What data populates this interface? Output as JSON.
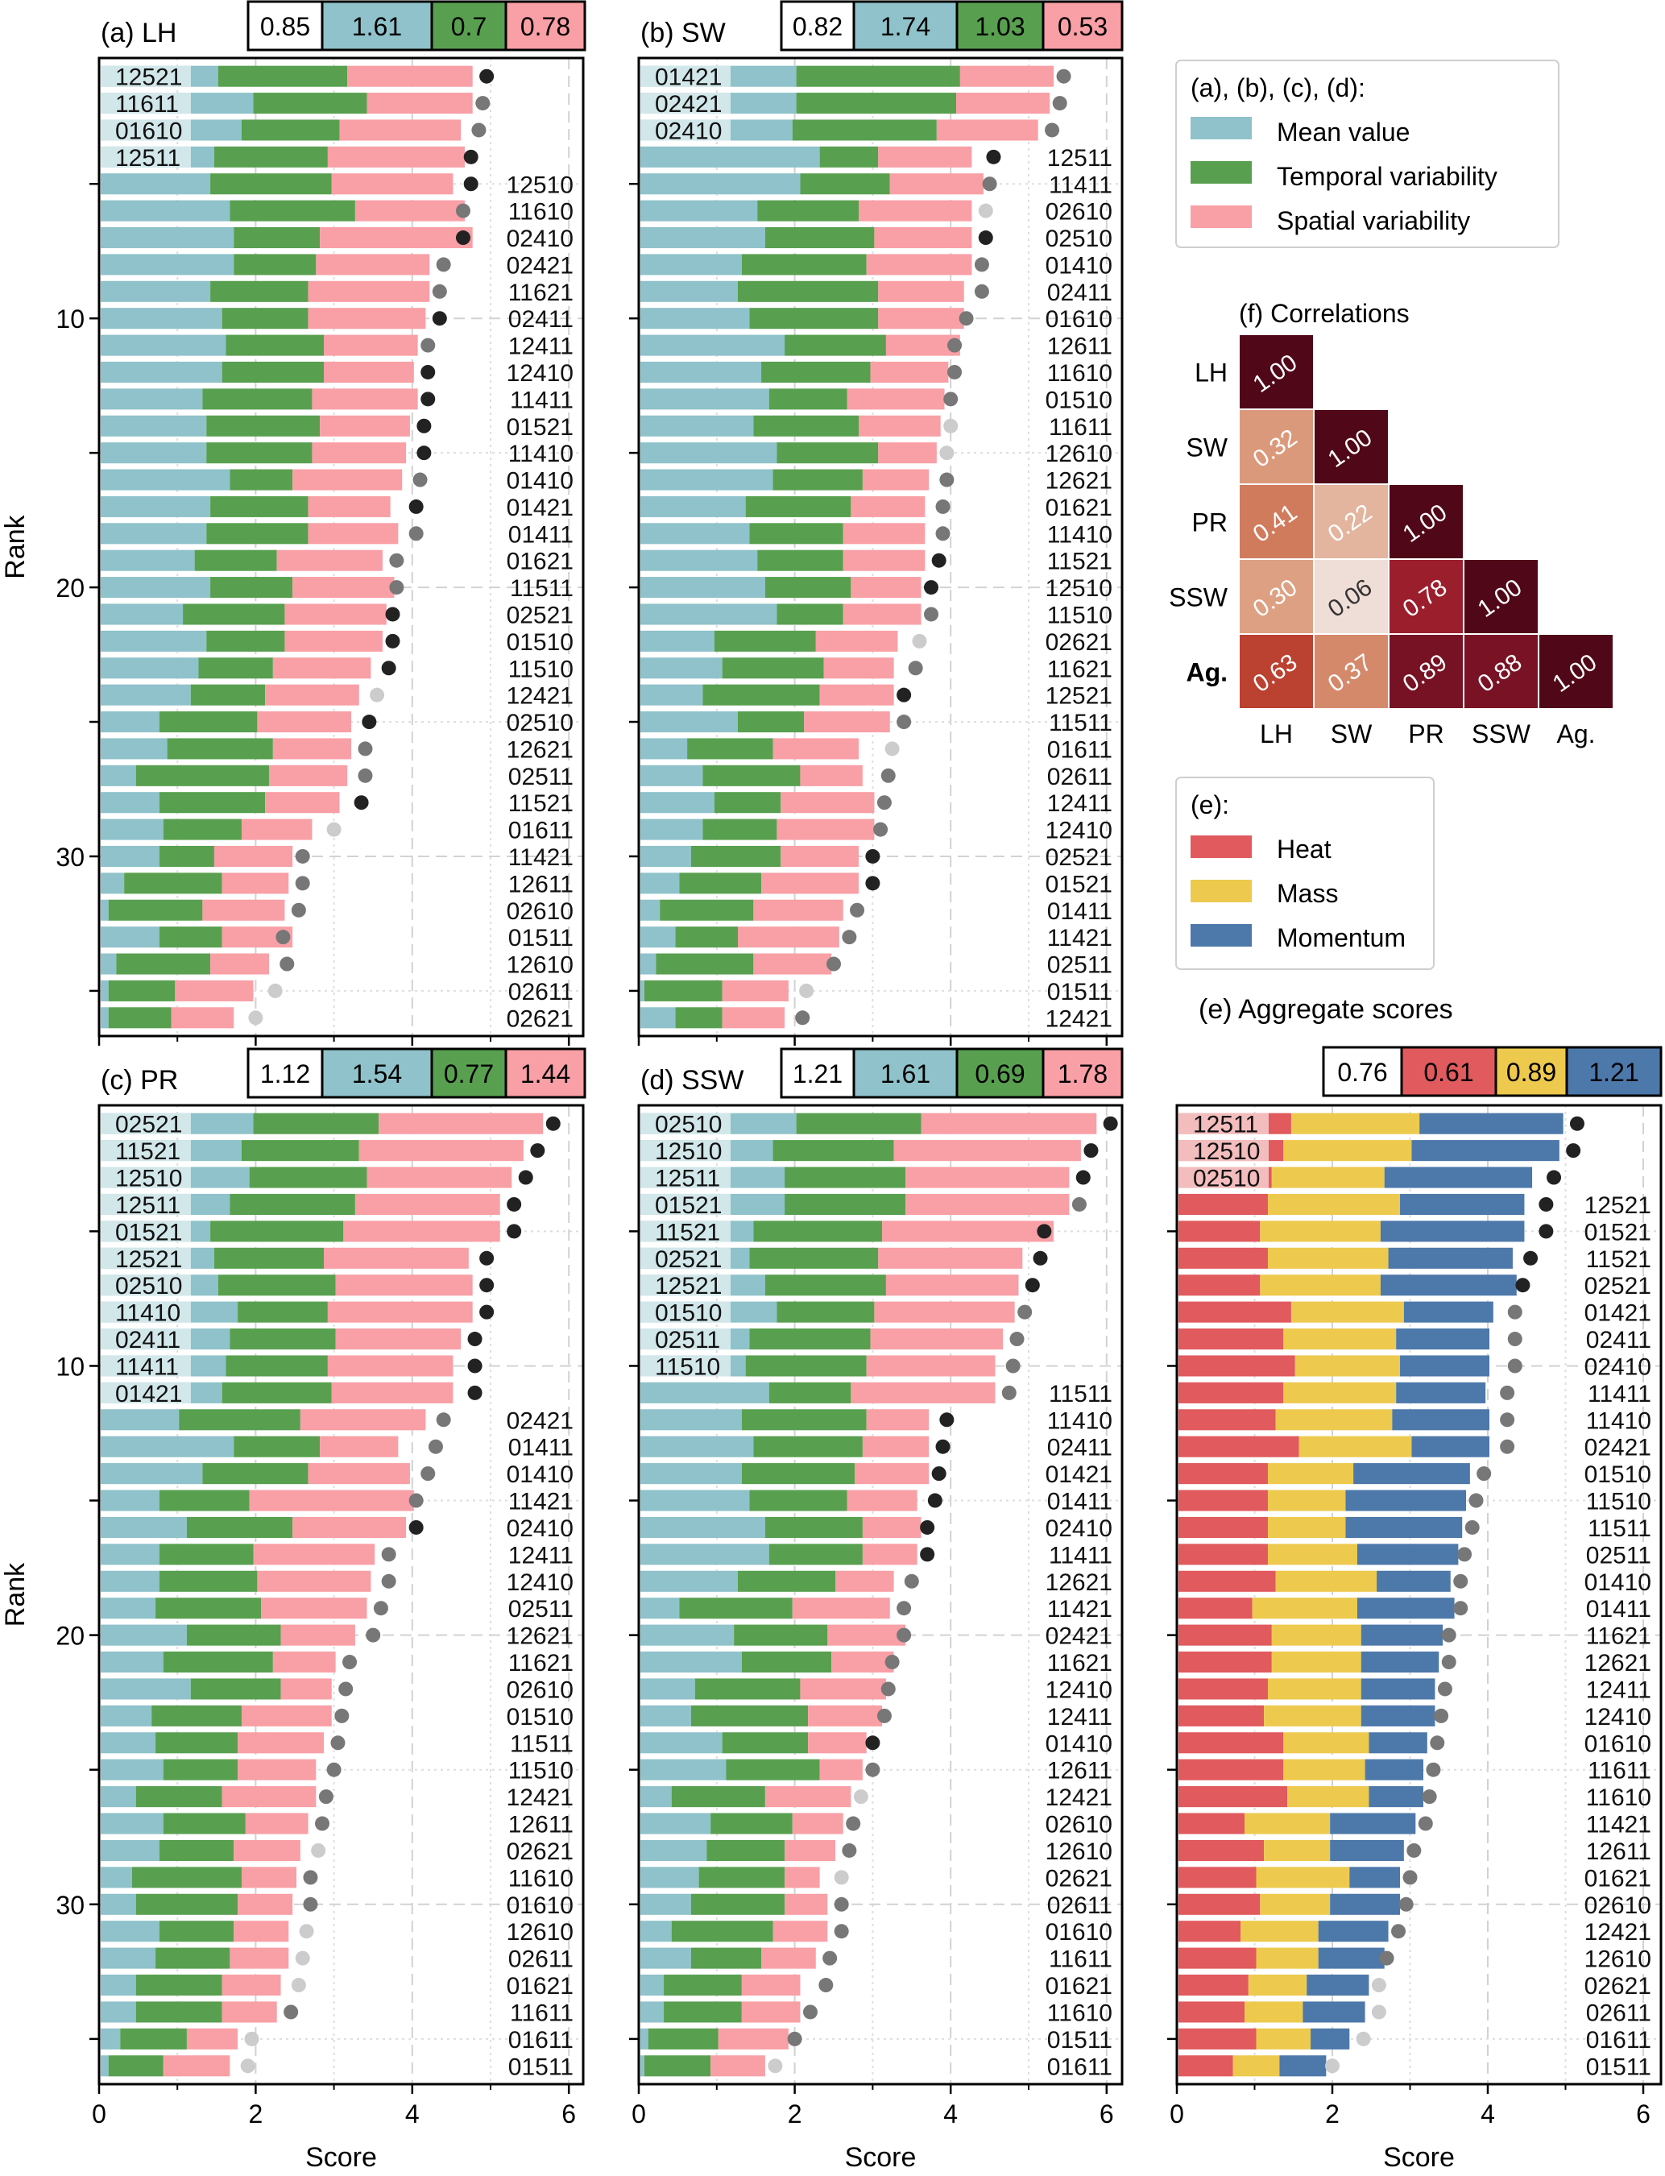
{
  "colors": {
    "mean": "#8fc2ca",
    "temporal": "#58a04f",
    "spatial": "#f99fa6",
    "heat": "#e05a5e",
    "mass": "#edc94e",
    "momentum": "#4d78aa",
    "dot_dark": "#222222",
    "dot_mid": "#777777",
    "dot_light": "#cccccc"
  },
  "common": {
    "ylabel": "Rank",
    "xlabel": "Score",
    "yticks": [
      "10",
      "20",
      "30"
    ],
    "xticks": [
      "0",
      "2",
      "4",
      "6"
    ]
  },
  "legend_main": {
    "title": "(a), (b), (c), (d):",
    "items": [
      "Mean value",
      "Temporal variability",
      "Spatial variability"
    ]
  },
  "legend_e": {
    "title": "(e):",
    "items": [
      "Heat",
      "Mass",
      "Momentum"
    ]
  },
  "corr": {
    "title": "(f) Correlations",
    "labels": [
      "LH",
      "SW",
      "PR",
      "SSW",
      "Ag."
    ],
    "values": [
      [
        "1.00"
      ],
      [
        "0.32",
        "1.00"
      ],
      [
        "0.41",
        "0.22",
        "1.00"
      ],
      [
        "0.30",
        "0.06",
        "0.78",
        "1.00"
      ],
      [
        "0.63",
        "0.37",
        "0.89",
        "0.88",
        "1.00"
      ]
    ]
  },
  "chart_data": [
    {
      "type": "bar",
      "panel": "LH",
      "title": "(a) LH",
      "scores": [
        "0.85",
        "1.61",
        "0.7",
        "0.78"
      ],
      "xlim": [
        0,
        6.3
      ],
      "labels": [
        "12521",
        "11611",
        "01610",
        "12511",
        "12510",
        "11610",
        "02410",
        "02421",
        "11621",
        "02411",
        "12411",
        "12410",
        "11411",
        "01521",
        "11410",
        "01410",
        "01421",
        "01411",
        "01621",
        "11511",
        "02521",
        "01510",
        "11510",
        "12421",
        "02510",
        "12621",
        "02511",
        "11521",
        "01611",
        "11421",
        "12611",
        "02610",
        "01511",
        "12610",
        "02611",
        "02621"
      ],
      "mean": [
        1.5,
        1.95,
        1.8,
        1.45,
        1.4,
        1.65,
        1.7,
        1.7,
        1.4,
        1.55,
        1.6,
        1.55,
        1.3,
        1.35,
        1.35,
        1.65,
        1.4,
        1.35,
        1.2,
        1.4,
        1.05,
        1.35,
        1.25,
        1.15,
        0.75,
        0.85,
        0.45,
        0.75,
        0.8,
        0.75,
        0.3,
        0.1,
        0.75,
        0.2,
        0.1,
        0.1
      ],
      "temporal": [
        1.65,
        1.45,
        1.25,
        1.45,
        1.55,
        1.6,
        1.1,
        1.05,
        1.25,
        1.1,
        1.25,
        1.3,
        1.4,
        1.45,
        1.35,
        0.8,
        1.25,
        1.3,
        1.05,
        1.05,
        1.3,
        1.0,
        0.95,
        0.95,
        1.25,
        1.35,
        1.7,
        1.35,
        1.0,
        0.7,
        1.25,
        1.2,
        0.8,
        1.2,
        0.85,
        0.8
      ],
      "spatial": [
        1.6,
        1.35,
        1.55,
        1.75,
        1.55,
        1.4,
        1.95,
        1.45,
        1.55,
        1.5,
        1.2,
        1.15,
        1.35,
        1.15,
        1.2,
        1.4,
        1.05,
        1.15,
        1.35,
        1.3,
        1.3,
        1.25,
        1.25,
        1.2,
        1.2,
        1.0,
        1.0,
        0.95,
        0.9,
        1.0,
        0.85,
        1.05,
        0.9,
        0.75,
        1.0,
        0.8
      ],
      "dots": [
        4.95,
        4.9,
        4.85,
        4.75,
        4.75,
        4.65,
        4.65,
        4.4,
        4.35,
        4.35,
        4.2,
        4.2,
        4.2,
        4.15,
        4.15,
        4.1,
        4.05,
        4.05,
        3.8,
        3.8,
        3.75,
        3.75,
        3.7,
        3.55,
        3.45,
        3.4,
        3.4,
        3.35,
        3.0,
        2.6,
        2.6,
        2.55,
        2.35,
        2.4,
        2.25,
        2.0
      ],
      "dotshade": [
        0,
        1,
        1,
        0,
        0,
        1,
        0,
        1,
        1,
        0,
        1,
        0,
        0,
        0,
        0,
        1,
        0,
        1,
        1,
        1,
        0,
        0,
        0,
        2,
        0,
        1,
        1,
        0,
        2,
        1,
        1,
        1,
        1,
        1,
        2,
        2
      ],
      "boxed": 4
    },
    {
      "type": "bar",
      "panel": "SW",
      "title": "(b) SW",
      "scores": [
        "0.82",
        "1.74",
        "1.03",
        "0.53"
      ],
      "xlim": [
        0,
        6.3
      ],
      "labels": [
        "01421",
        "02421",
        "02410",
        "12511",
        "11411",
        "02610",
        "02510",
        "01410",
        "02411",
        "01610",
        "12611",
        "11610",
        "01510",
        "11611",
        "12610",
        "12621",
        "01621",
        "11410",
        "11521",
        "12510",
        "11510",
        "02621",
        "11621",
        "12521",
        "11511",
        "01611",
        "02611",
        "12411",
        "12410",
        "02521",
        "01521",
        "01411",
        "11421",
        "02511",
        "01511",
        "12421"
      ],
      "mean": [
        2.0,
        2.0,
        1.95,
        2.3,
        2.05,
        1.5,
        1.6,
        1.3,
        1.25,
        1.4,
        1.85,
        1.55,
        1.65,
        1.45,
        1.75,
        1.7,
        1.35,
        1.4,
        1.5,
        1.6,
        1.75,
        0.95,
        1.05,
        0.8,
        1.25,
        0.6,
        0.8,
        0.95,
        0.8,
        0.65,
        0.5,
        0.25,
        0.45,
        0.2,
        0.05,
        0.45
      ],
      "temporal": [
        2.1,
        2.05,
        1.85,
        0.75,
        1.15,
        1.3,
        1.4,
        1.6,
        1.8,
        1.65,
        1.3,
        1.4,
        1.0,
        1.35,
        1.3,
        1.15,
        1.35,
        1.2,
        1.1,
        1.1,
        0.85,
        1.3,
        1.3,
        1.5,
        0.85,
        1.1,
        1.25,
        0.85,
        0.95,
        1.15,
        1.05,
        1.2,
        0.8,
        1.25,
        1.0,
        0.6
      ],
      "spatial": [
        1.2,
        1.2,
        1.3,
        1.2,
        1.2,
        1.45,
        1.25,
        1.35,
        1.1,
        1.1,
        0.95,
        1.0,
        1.25,
        1.05,
        0.75,
        0.85,
        0.95,
        1.05,
        1.05,
        0.9,
        1.0,
        1.05,
        0.9,
        0.95,
        1.1,
        1.1,
        0.8,
        1.2,
        1.25,
        1.0,
        1.25,
        1.15,
        1.3,
        1.0,
        0.85,
        0.8
      ],
      "dots": [
        5.45,
        5.4,
        5.3,
        4.55,
        4.5,
        4.45,
        4.45,
        4.4,
        4.4,
        4.2,
        4.05,
        4.05,
        4.0,
        4.0,
        3.95,
        3.95,
        3.9,
        3.9,
        3.85,
        3.75,
        3.75,
        3.6,
        3.55,
        3.4,
        3.4,
        3.25,
        3.2,
        3.15,
        3.1,
        3.0,
        3.0,
        2.8,
        2.7,
        2.5,
        2.15,
        2.1
      ],
      "dotshade": [
        1,
        1,
        1,
        0,
        1,
        2,
        0,
        1,
        1,
        1,
        1,
        1,
        1,
        2,
        2,
        1,
        1,
        1,
        0,
        0,
        1,
        2,
        1,
        0,
        1,
        2,
        1,
        1,
        1,
        0,
        0,
        1,
        1,
        1,
        2,
        1
      ],
      "boxed": 3
    },
    {
      "type": "bar",
      "panel": "PR",
      "title": "(c) PR",
      "scores": [
        "1.12",
        "1.54",
        "0.77",
        "1.44"
      ],
      "xlim": [
        0,
        6.3
      ],
      "labels": [
        "02521",
        "11521",
        "12510",
        "12511",
        "01521",
        "12521",
        "02510",
        "11410",
        "02411",
        "11411",
        "01421",
        "02421",
        "01411",
        "01410",
        "11421",
        "02410",
        "12411",
        "12410",
        "02511",
        "12621",
        "11621",
        "02610",
        "01510",
        "11511",
        "11510",
        "12421",
        "12611",
        "02621",
        "11610",
        "01610",
        "12610",
        "02611",
        "01621",
        "11611",
        "01611",
        "01511"
      ],
      "mean": [
        1.95,
        1.8,
        1.9,
        1.65,
        1.4,
        1.45,
        1.5,
        1.75,
        1.65,
        1.6,
        1.55,
        1.0,
        1.7,
        1.3,
        0.75,
        1.1,
        0.75,
        0.75,
        0.7,
        1.1,
        0.8,
        1.15,
        0.65,
        0.7,
        0.8,
        0.45,
        0.8,
        0.75,
        0.4,
        0.45,
        0.75,
        0.7,
        0.45,
        0.45,
        0.25,
        0.1
      ],
      "temporal": [
        1.6,
        1.5,
        1.5,
        1.6,
        1.7,
        1.4,
        1.5,
        1.15,
        1.35,
        1.3,
        1.4,
        1.55,
        1.1,
        1.35,
        1.15,
        1.35,
        1.2,
        1.25,
        1.35,
        1.2,
        1.4,
        1.15,
        1.15,
        1.05,
        0.95,
        1.1,
        1.05,
        0.95,
        1.4,
        1.3,
        0.95,
        0.95,
        1.1,
        1.1,
        0.85,
        0.7
      ],
      "spatial": [
        2.1,
        2.1,
        1.85,
        1.85,
        2.0,
        1.85,
        1.75,
        1.85,
        1.6,
        1.6,
        1.55,
        1.6,
        1.0,
        1.3,
        2.1,
        1.45,
        1.55,
        1.45,
        1.35,
        0.95,
        0.8,
        0.65,
        1.15,
        1.1,
        1.0,
        1.2,
        0.8,
        0.85,
        0.7,
        0.7,
        0.7,
        0.75,
        0.75,
        0.7,
        0.65,
        0.85
      ],
      "dots": [
        5.8,
        5.6,
        5.45,
        5.3,
        5.3,
        4.95,
        4.95,
        4.95,
        4.8,
        4.8,
        4.8,
        4.4,
        4.3,
        4.2,
        4.05,
        4.05,
        3.7,
        3.7,
        3.6,
        3.5,
        3.2,
        3.15,
        3.1,
        3.05,
        3.0,
        2.9,
        2.85,
        2.8,
        2.7,
        2.7,
        2.65,
        2.6,
        2.55,
        2.45,
        1.95,
        1.9
      ],
      "dotshade": [
        0,
        0,
        0,
        0,
        0,
        0,
        0,
        0,
        0,
        0,
        0,
        1,
        1,
        1,
        1,
        0,
        1,
        1,
        1,
        1,
        1,
        1,
        1,
        1,
        1,
        1,
        1,
        2,
        1,
        1,
        2,
        2,
        2,
        1,
        2,
        2
      ],
      "boxed": 11
    },
    {
      "type": "bar",
      "panel": "SSW",
      "title": "(d) SSW",
      "scores": [
        "1.21",
        "1.61",
        "0.69",
        "1.78"
      ],
      "xlim": [
        0,
        6.3
      ],
      "labels": [
        "02510",
        "12510",
        "12511",
        "01521",
        "11521",
        "02521",
        "12521",
        "01510",
        "02511",
        "11510",
        "11511",
        "11410",
        "02411",
        "01421",
        "01411",
        "02410",
        "11411",
        "12621",
        "11421",
        "02421",
        "11621",
        "12410",
        "12411",
        "01410",
        "12611",
        "12421",
        "02610",
        "12610",
        "02621",
        "02611",
        "01610",
        "11611",
        "01621",
        "11610",
        "01511",
        "01611"
      ],
      "mean": [
        2.0,
        1.7,
        1.85,
        1.85,
        1.45,
        1.4,
        1.6,
        1.75,
        1.4,
        1.35,
        1.65,
        1.3,
        1.45,
        1.3,
        1.4,
        1.6,
        1.65,
        1.25,
        0.5,
        1.2,
        1.3,
        0.7,
        0.65,
        1.05,
        1.1,
        0.4,
        0.9,
        0.85,
        0.75,
        0.65,
        0.4,
        0.65,
        0.3,
        0.3,
        0.1,
        0.05
      ],
      "temporal": [
        1.6,
        1.55,
        1.55,
        1.55,
        1.65,
        1.65,
        1.55,
        1.25,
        1.55,
        1.55,
        1.05,
        1.6,
        1.4,
        1.45,
        1.25,
        1.25,
        1.2,
        1.25,
        1.45,
        1.2,
        1.15,
        1.35,
        1.5,
        1.1,
        1.2,
        1.2,
        1.05,
        1.0,
        1.1,
        1.2,
        1.3,
        0.9,
        1.0,
        1.0,
        0.9,
        0.85
      ],
      "spatial": [
        2.25,
        2.4,
        2.1,
        2.1,
        2.2,
        1.85,
        1.7,
        1.8,
        1.7,
        1.65,
        1.85,
        0.8,
        0.85,
        0.95,
        0.9,
        0.75,
        0.7,
        0.75,
        1.25,
        1.0,
        0.8,
        1.1,
        0.95,
        0.75,
        0.55,
        1.1,
        0.65,
        0.65,
        0.45,
        0.55,
        0.7,
        0.7,
        0.75,
        0.75,
        0.9,
        0.7
      ],
      "dots": [
        6.05,
        5.8,
        5.7,
        5.65,
        5.2,
        5.15,
        5.05,
        4.95,
        4.85,
        4.8,
        4.75,
        3.95,
        3.9,
        3.85,
        3.8,
        3.7,
        3.7,
        3.5,
        3.4,
        3.4,
        3.25,
        3.2,
        3.15,
        3.0,
        3.0,
        2.85,
        2.75,
        2.7,
        2.6,
        2.6,
        2.6,
        2.45,
        2.4,
        2.2,
        2.0,
        1.75
      ],
      "dotshade": [
        0,
        0,
        0,
        1,
        0,
        0,
        0,
        1,
        1,
        1,
        1,
        0,
        0,
        0,
        0,
        0,
        0,
        1,
        1,
        1,
        1,
        1,
        1,
        0,
        1,
        2,
        1,
        1,
        2,
        1,
        1,
        1,
        1,
        1,
        1,
        2
      ],
      "boxed": 10
    },
    {
      "type": "bar",
      "panel": "Aggregate",
      "title": "(e) Aggregate scores",
      "scores": [
        "0.76",
        "0.61",
        "0.89",
        "1.21"
      ],
      "xlim": [
        0,
        6.3
      ],
      "labels": [
        "12511",
        "12510",
        "02510",
        "12521",
        "01521",
        "11521",
        "02521",
        "01421",
        "02411",
        "02410",
        "11411",
        "11410",
        "02421",
        "01510",
        "11510",
        "11511",
        "02511",
        "01410",
        "01411",
        "11621",
        "12621",
        "12411",
        "12410",
        "01610",
        "11611",
        "11610",
        "11421",
        "12611",
        "01621",
        "02610",
        "12421",
        "12610",
        "02621",
        "02611",
        "01611",
        "01511"
      ],
      "heat": [
        1.45,
        1.35,
        1.2,
        1.15,
        1.05,
        1.15,
        1.05,
        1.45,
        1.35,
        1.5,
        1.35,
        1.25,
        1.55,
        1.15,
        1.15,
        1.15,
        1.15,
        1.25,
        0.95,
        1.2,
        1.2,
        1.15,
        1.1,
        1.35,
        1.35,
        1.4,
        0.85,
        1.1,
        1.0,
        1.05,
        0.8,
        1.0,
        0.9,
        0.85,
        1.0,
        0.7
      ],
      "mass": [
        1.65,
        1.65,
        1.45,
        1.7,
        1.55,
        1.55,
        1.55,
        1.45,
        1.45,
        1.35,
        1.45,
        1.5,
        1.45,
        1.1,
        1.0,
        1.0,
        1.15,
        1.3,
        1.35,
        1.15,
        1.15,
        1.2,
        1.25,
        1.1,
        1.05,
        1.05,
        1.1,
        0.85,
        1.2,
        0.9,
        1.0,
        0.8,
        0.75,
        0.75,
        0.7,
        0.6
      ],
      "momentum": [
        1.85,
        1.9,
        1.9,
        1.6,
        1.85,
        1.6,
        1.75,
        1.15,
        1.2,
        1.15,
        1.15,
        1.25,
        1.0,
        1.5,
        1.55,
        1.5,
        1.3,
        0.95,
        1.25,
        1.05,
        1.0,
        0.95,
        0.95,
        0.75,
        0.75,
        0.7,
        1.1,
        0.95,
        0.65,
        0.9,
        0.9,
        0.85,
        0.8,
        0.8,
        0.5,
        0.6
      ],
      "dots": [
        5.15,
        5.1,
        4.85,
        4.75,
        4.75,
        4.55,
        4.45,
        4.35,
        4.35,
        4.35,
        4.25,
        4.25,
        4.25,
        3.95,
        3.85,
        3.8,
        3.7,
        3.65,
        3.65,
        3.5,
        3.5,
        3.45,
        3.4,
        3.35,
        3.3,
        3.25,
        3.2,
        3.05,
        3.0,
        2.95,
        2.85,
        2.7,
        2.6,
        2.6,
        2.4,
        2.0
      ],
      "dotshade": [
        0,
        0,
        0,
        0,
        0,
        0,
        0,
        1,
        1,
        1,
        1,
        1,
        1,
        1,
        1,
        1,
        1,
        1,
        1,
        1,
        1,
        1,
        1,
        1,
        1,
        1,
        1,
        1,
        1,
        1,
        1,
        1,
        2,
        2,
        2,
        2
      ],
      "boxed": 3
    }
  ]
}
